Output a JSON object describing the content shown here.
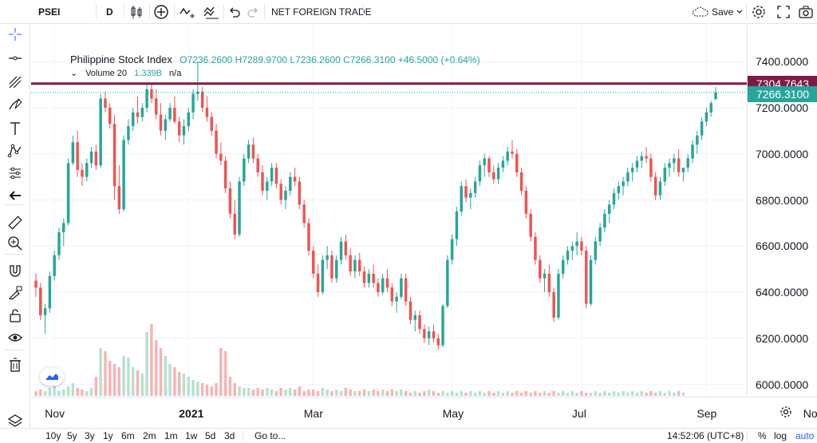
{
  "toolbar": {
    "symbol": "PSEI",
    "interval": "D",
    "indicator": "NET FOREIGN TRADE",
    "save_label": "Save",
    "icons": [
      "bar-style-icon",
      "add-compare-icon",
      "indicators-icon",
      "templates-icon",
      "undo-icon",
      "redo-icon",
      "cloud-icon",
      "chevron-down-icon",
      "settings-icon",
      "fullscreen-icon",
      "camera-icon"
    ]
  },
  "legend": {
    "title": "Philippine Stock Index",
    "ohlc": "O7236.2600 H7289.9700 L7236.2600 C7266.3100 +46.5000 (+0.64%)",
    "volume_label": "Volume 20",
    "volume_value": "1.339B",
    "volume_na": "n/a"
  },
  "price_axis": {
    "labels": [
      "7400.0000",
      "7200.0000",
      "7000.0000",
      "6800.0000",
      "6600.0000",
      "6400.0000",
      "6200.0000",
      "6000.0000"
    ],
    "line_tag": "7304.7643",
    "last_tag": "7266.3100"
  },
  "time_axis": {
    "labels": [
      "Nov",
      "2021",
      "Mar",
      "May",
      "Jul",
      "Sep",
      "No"
    ]
  },
  "bottombar": {
    "ranges": [
      "10y",
      "5y",
      "3y",
      "1y",
      "6m",
      "2m",
      "1m",
      "1w",
      "5d",
      "3d"
    ],
    "goto": "Go to...",
    "clock": "14:52:06 (UTC+8)",
    "percent": "%",
    "log": "log",
    "auto": "auto"
  },
  "colors": {
    "up": "#26a69a",
    "down": "#ef5350",
    "up_volume": "#b8e0cf",
    "down_volume": "#f5b5b3",
    "horizontal_line": "#7b1c46",
    "accent": "#2962ff"
  },
  "chart_data": {
    "type": "candlestick",
    "series": [
      {
        "name": "Philippine Stock Index",
        "values": [
          [
            6450,
            6480,
            6380,
            6420
          ],
          [
            6420,
            6440,
            6280,
            6300
          ],
          [
            6300,
            6350,
            6220,
            6330
          ],
          [
            6330,
            6490,
            6310,
            6470
          ],
          [
            6470,
            6580,
            6450,
            6560
          ],
          [
            6560,
            6680,
            6540,
            6660
          ],
          [
            6660,
            6720,
            6600,
            6700
          ],
          [
            6700,
            6980,
            6690,
            6960
          ],
          [
            6960,
            7080,
            6950,
            7050
          ],
          [
            7050,
            7100,
            6900,
            6930
          ],
          [
            6930,
            6960,
            6860,
            6900
          ],
          [
            6900,
            6980,
            6880,
            6960
          ],
          [
            6960,
            7030,
            6940,
            7010
          ],
          [
            7010,
            7040,
            6930,
            6950
          ],
          [
            6950,
            7260,
            6940,
            7240
          ],
          [
            7240,
            7270,
            7180,
            7200
          ],
          [
            7200,
            7220,
            7110,
            7130
          ],
          [
            7130,
            7170,
            6800,
            6860
          ],
          [
            6860,
            6950,
            6740,
            6760
          ],
          [
            6760,
            7080,
            6750,
            7060
          ],
          [
            7060,
            7150,
            7040,
            7120
          ],
          [
            7120,
            7200,
            7100,
            7180
          ],
          [
            7180,
            7250,
            7130,
            7160
          ],
          [
            7160,
            7220,
            7140,
            7200
          ],
          [
            7200,
            7300,
            7180,
            7280
          ],
          [
            7280,
            7300,
            7220,
            7240
          ],
          [
            7240,
            7280,
            7150,
            7170
          ],
          [
            7170,
            7220,
            7080,
            7100
          ],
          [
            7100,
            7170,
            7060,
            7150
          ],
          [
            7150,
            7220,
            7140,
            7200
          ],
          [
            7200,
            7250,
            7130,
            7140
          ],
          [
            7140,
            7160,
            7050,
            7080
          ],
          [
            7080,
            7150,
            7040,
            7120
          ],
          [
            7120,
            7200,
            7100,
            7180
          ],
          [
            7180,
            7280,
            7150,
            7260
          ],
          [
            7260,
            7400,
            7230,
            7270
          ],
          [
            7270,
            7290,
            7180,
            7200
          ],
          [
            7200,
            7250,
            7140,
            7160
          ],
          [
            7160,
            7180,
            7080,
            7100
          ],
          [
            7100,
            7130,
            6980,
            7000
          ],
          [
            7000,
            7050,
            6950,
            6970
          ],
          [
            6970,
            6990,
            6830,
            6850
          ],
          [
            6850,
            6880,
            6720,
            6740
          ],
          [
            6740,
            6800,
            6630,
            6650
          ],
          [
            6650,
            6900,
            6640,
            6880
          ],
          [
            6880,
            7000,
            6860,
            6980
          ],
          [
            6980,
            7060,
            6960,
            7040
          ],
          [
            7040,
            7070,
            6960,
            6980
          ],
          [
            6980,
            7000,
            6900,
            6920
          ],
          [
            6920,
            6950,
            6820,
            6840
          ],
          [
            6840,
            6900,
            6800,
            6880
          ],
          [
            6880,
            6960,
            6860,
            6940
          ],
          [
            6940,
            6960,
            6850,
            6870
          ],
          [
            6870,
            6890,
            6780,
            6800
          ],
          [
            6800,
            6860,
            6760,
            6840
          ],
          [
            6840,
            6920,
            6820,
            6900
          ],
          [
            6900,
            6940,
            6860,
            6880
          ],
          [
            6880,
            6900,
            6760,
            6780
          ],
          [
            6780,
            6800,
            6680,
            6700
          ],
          [
            6700,
            6720,
            6560,
            6580
          ],
          [
            6580,
            6600,
            6460,
            6480
          ],
          [
            6480,
            6520,
            6380,
            6400
          ],
          [
            6400,
            6560,
            6390,
            6540
          ],
          [
            6540,
            6600,
            6500,
            6560
          ],
          [
            6560,
            6580,
            6440,
            6460
          ],
          [
            6460,
            6560,
            6440,
            6540
          ],
          [
            6540,
            6640,
            6520,
            6620
          ],
          [
            6620,
            6650,
            6540,
            6560
          ],
          [
            6560,
            6590,
            6470,
            6490
          ],
          [
            6490,
            6560,
            6460,
            6540
          ],
          [
            6540,
            6570,
            6470,
            6490
          ],
          [
            6490,
            6510,
            6420,
            6440
          ],
          [
            6440,
            6500,
            6420,
            6480
          ],
          [
            6480,
            6520,
            6420,
            6440
          ],
          [
            6440,
            6460,
            6380,
            6400
          ],
          [
            6400,
            6480,
            6390,
            6460
          ],
          [
            6460,
            6500,
            6400,
            6420
          ],
          [
            6420,
            6440,
            6340,
            6360
          ],
          [
            6360,
            6400,
            6310,
            6380
          ],
          [
            6380,
            6480,
            6370,
            6460
          ],
          [
            6460,
            6480,
            6340,
            6360
          ],
          [
            6360,
            6380,
            6260,
            6280
          ],
          [
            6280,
            6320,
            6230,
            6300
          ],
          [
            6300,
            6320,
            6220,
            6240
          ],
          [
            6240,
            6260,
            6180,
            6200
          ],
          [
            6200,
            6250,
            6170,
            6230
          ],
          [
            6230,
            6260,
            6180,
            6200
          ],
          [
            6200,
            6220,
            6150,
            6170
          ],
          [
            6170,
            6350,
            6160,
            6340
          ],
          [
            6340,
            6560,
            6330,
            6540
          ],
          [
            6540,
            6650,
            6520,
            6630
          ],
          [
            6630,
            6770,
            6600,
            6750
          ],
          [
            6750,
            6880,
            6730,
            6860
          ],
          [
            6860,
            6890,
            6790,
            6810
          ],
          [
            6810,
            6850,
            6760,
            6830
          ],
          [
            6830,
            6900,
            6810,
            6880
          ],
          [
            6880,
            6970,
            6860,
            6950
          ],
          [
            6950,
            7000,
            6900,
            6980
          ],
          [
            6980,
            6990,
            6900,
            6920
          ],
          [
            6920,
            6950,
            6870,
            6890
          ],
          [
            6890,
            6960,
            6870,
            6940
          ],
          [
            6940,
            6990,
            6920,
            6970
          ],
          [
            6970,
            7030,
            6950,
            7010
          ],
          [
            7010,
            7060,
            6980,
            7000
          ],
          [
            7000,
            7020,
            6900,
            6920
          ],
          [
            6920,
            6940,
            6820,
            6840
          ],
          [
            6840,
            6860,
            6720,
            6740
          ],
          [
            6740,
            6760,
            6620,
            6640
          ],
          [
            6640,
            6660,
            6520,
            6540
          ],
          [
            6540,
            6560,
            6440,
            6460
          ],
          [
            6460,
            6500,
            6400,
            6480
          ],
          [
            6480,
            6520,
            6380,
            6400
          ],
          [
            6400,
            6420,
            6270,
            6290
          ],
          [
            6290,
            6500,
            6280,
            6480
          ],
          [
            6480,
            6560,
            6460,
            6540
          ],
          [
            6540,
            6600,
            6520,
            6580
          ],
          [
            6580,
            6620,
            6540,
            6600
          ],
          [
            6600,
            6660,
            6560,
            6620
          ],
          [
            6620,
            6640,
            6560,
            6580
          ],
          [
            6580,
            6600,
            6330,
            6350
          ],
          [
            6350,
            6560,
            6340,
            6540
          ],
          [
            6540,
            6640,
            6520,
            6620
          ],
          [
            6620,
            6700,
            6600,
            6680
          ],
          [
            6680,
            6760,
            6660,
            6740
          ],
          [
            6740,
            6800,
            6700,
            6780
          ],
          [
            6780,
            6850,
            6760,
            6830
          ],
          [
            6830,
            6880,
            6800,
            6860
          ],
          [
            6860,
            6900,
            6820,
            6880
          ],
          [
            6880,
            6940,
            6860,
            6920
          ],
          [
            6920,
            6960,
            6880,
            6940
          ],
          [
            6940,
            6990,
            6920,
            6970
          ],
          [
            6970,
            7010,
            6940,
            6990
          ],
          [
            6990,
            7030,
            6960,
            6980
          ],
          [
            6980,
            7000,
            6880,
            6900
          ],
          [
            6900,
            6920,
            6800,
            6820
          ],
          [
            6820,
            6900,
            6800,
            6880
          ],
          [
            6880,
            6960,
            6860,
            6940
          ],
          [
            6940,
            6980,
            6900,
            6960
          ],
          [
            6960,
            7000,
            6920,
            6980
          ],
          [
            6980,
            7020,
            6900,
            6920
          ],
          [
            6920,
            6940,
            6880,
            6940
          ],
          [
            6940,
            7000,
            6920,
            6980
          ],
          [
            6980,
            7060,
            6960,
            7040
          ],
          [
            7040,
            7100,
            7000,
            7080
          ],
          [
            7080,
            7160,
            7060,
            7140
          ],
          [
            7140,
            7200,
            7120,
            7180
          ],
          [
            7180,
            7230,
            7160,
            7220
          ],
          [
            7236.26,
            7289.97,
            7236.26,
            7266.31
          ]
        ]
      }
    ],
    "volume": [
      3,
      4,
      3,
      5,
      6,
      3,
      4,
      6,
      8,
      5,
      4,
      3,
      5,
      12,
      30,
      28,
      22,
      20,
      18,
      25,
      24,
      18,
      16,
      14,
      40,
      45,
      35,
      30,
      25,
      20,
      18,
      15,
      14,
      12,
      10,
      9,
      8,
      7,
      6,
      8,
      30,
      28,
      12,
      8,
      6,
      5,
      5,
      4,
      5,
      4,
      5,
      4,
      3,
      5,
      4,
      5,
      4,
      6,
      3,
      4,
      4,
      3,
      5,
      4,
      3,
      4,
      3,
      5,
      4,
      3,
      3,
      4,
      3,
      4,
      3,
      4,
      3,
      4,
      3,
      4,
      3,
      2,
      3,
      2,
      3,
      4,
      3,
      2,
      3,
      2,
      3,
      2,
      3,
      2,
      3,
      2,
      3,
      2,
      3,
      2,
      3,
      2,
      3,
      2,
      3,
      2,
      3,
      2,
      3,
      2,
      3,
      2,
      3,
      2,
      3,
      2,
      3,
      2,
      3,
      2,
      2,
      3,
      2,
      3,
      2,
      3,
      2,
      3,
      2,
      3,
      2,
      3,
      2,
      3,
      2,
      3,
      2,
      3,
      2,
      3,
      2
    ],
    "xlabels": [
      "Nov",
      "2021",
      "Mar",
      "May",
      "Jul",
      "Sep",
      "No"
    ],
    "ylabels": [
      "7400.0000",
      "7200.0000",
      "7000.0000",
      "6800.0000",
      "6600.0000",
      "6400.0000",
      "6200.0000",
      "6000.0000"
    ],
    "ylim": [
      5950,
      7560
    ],
    "horizontal_line": 7304.7643,
    "last_price": 7266.31
  }
}
